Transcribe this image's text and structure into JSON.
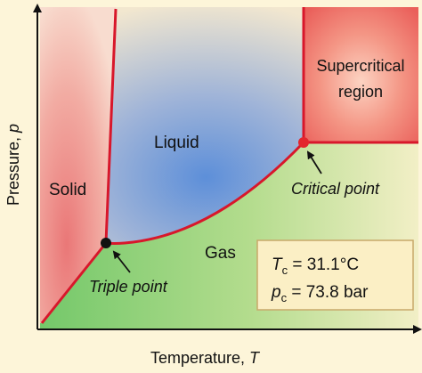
{
  "axes": {
    "x_label_main": "Temperature, ",
    "x_label_var": "T",
    "y_label_main": "Pressure, ",
    "y_label_var": "p"
  },
  "regions": {
    "solid": "Solid",
    "liquid": "Liquid",
    "gas": "Gas",
    "supercritical_line1": "Supercritical",
    "supercritical_line2": "region"
  },
  "points": {
    "triple": "Triple point",
    "critical": "Critical point"
  },
  "constants": {
    "tc_sym": "T",
    "tc_sub": "c",
    "tc_val": " = 31.1°C",
    "pc_sym": "p",
    "pc_sub": "c",
    "pc_val": " = 73.8 bar"
  },
  "colors": {
    "boundary": "#d8172b",
    "solid_region": "#ef8585",
    "liquid_region": "#6a96d6",
    "gas_region": "#8fcf79",
    "supercritical_region": "#f28a7f",
    "background": "#fdf5d9"
  }
}
